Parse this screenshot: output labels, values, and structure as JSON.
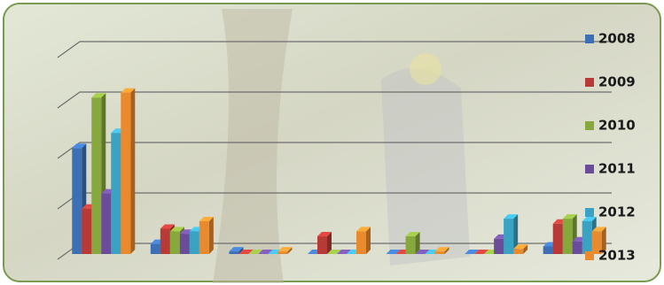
{
  "chart_data": {
    "type": "bar",
    "categories": [
      null,
      null,
      null,
      null,
      null,
      null,
      null
    ],
    "series": [
      {
        "name": "2008",
        "color": "#3b6fb6",
        "values": [
          2.1,
          0.2,
          0.05,
          0,
          0,
          0,
          0.15
        ]
      },
      {
        "name": "2009",
        "color": "#b83a36",
        "values": [
          0.9,
          0.5,
          0,
          0.35,
          0,
          0,
          0.6
        ]
      },
      {
        "name": "2010",
        "color": "#86a83c",
        "values": [
          3.1,
          0.45,
          0,
          0,
          0.35,
          0,
          0.7
        ]
      },
      {
        "name": "2011",
        "color": "#6b4c9a",
        "values": [
          1.2,
          0.4,
          0,
          0,
          0,
          0.3,
          0.25
        ]
      },
      {
        "name": "2012",
        "color": "#3aa3c4",
        "values": [
          2.4,
          0.45,
          0,
          0,
          0,
          0.7,
          0.65
        ]
      },
      {
        "name": "2013",
        "color": "#ea8a2e",
        "values": [
          3.2,
          0.65,
          0.05,
          0.45,
          0.05,
          0.1,
          0.45
        ]
      }
    ],
    "ylim": [
      0,
      4
    ],
    "yticks": [
      0,
      1,
      2,
      3,
      4
    ],
    "grid": true,
    "legend": "right"
  }
}
